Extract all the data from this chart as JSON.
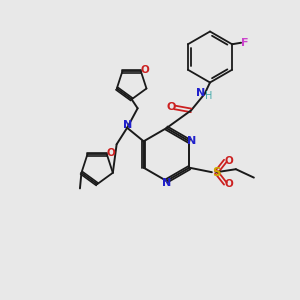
{
  "background_color": "#e8e8e8",
  "bond_color": "#1a1a1a",
  "nitrogen_color": "#2020cc",
  "oxygen_color": "#cc2020",
  "sulfur_color": "#ccaa00",
  "fluorine_color": "#cc44cc",
  "nh_color": "#44aaaa",
  "figsize": [
    3.0,
    3.0
  ],
  "dpi": 100,
  "xlim": [
    0,
    10
  ],
  "ylim": [
    0,
    10
  ]
}
